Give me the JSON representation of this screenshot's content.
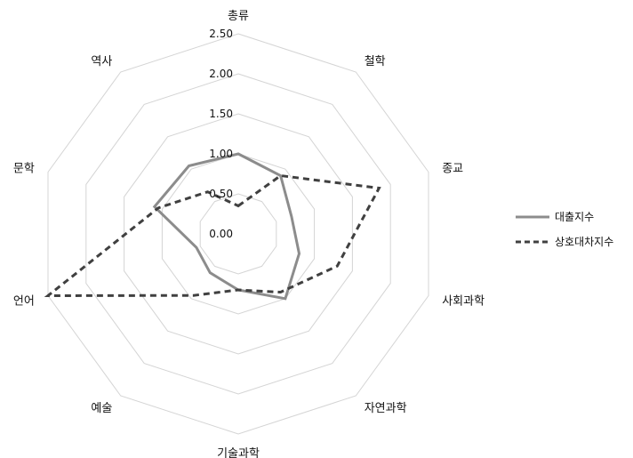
{
  "chart_data": {
    "type": "radar",
    "title": "",
    "categories": [
      "총류",
      "철학",
      "종교",
      "사회과학",
      "자연과학",
      "기술과학",
      "예술",
      "언어",
      "문학",
      "역사"
    ],
    "rlim": [
      0,
      2.5
    ],
    "ticks": [
      "0.00",
      "0.50",
      "1.00",
      "1.50",
      "2.00",
      "2.50"
    ],
    "tick_values": [
      0,
      0.5,
      1.0,
      1.5,
      2.0,
      2.5
    ],
    "grid": true,
    "legend_position": "right",
    "series": [
      {
        "name": "대출지수",
        "color": "#8c8c8c",
        "dash": "solid",
        "values": [
          1.0,
          0.9,
          0.7,
          0.8,
          1.0,
          0.7,
          0.6,
          0.55,
          1.1,
          1.05
        ]
      },
      {
        "name": "상호대차지수",
        "color": "#404040",
        "dash": "dashed",
        "values": [
          0.35,
          0.9,
          1.85,
          1.3,
          0.9,
          0.7,
          0.95,
          2.5,
          1.05,
          0.65
        ]
      }
    ]
  }
}
